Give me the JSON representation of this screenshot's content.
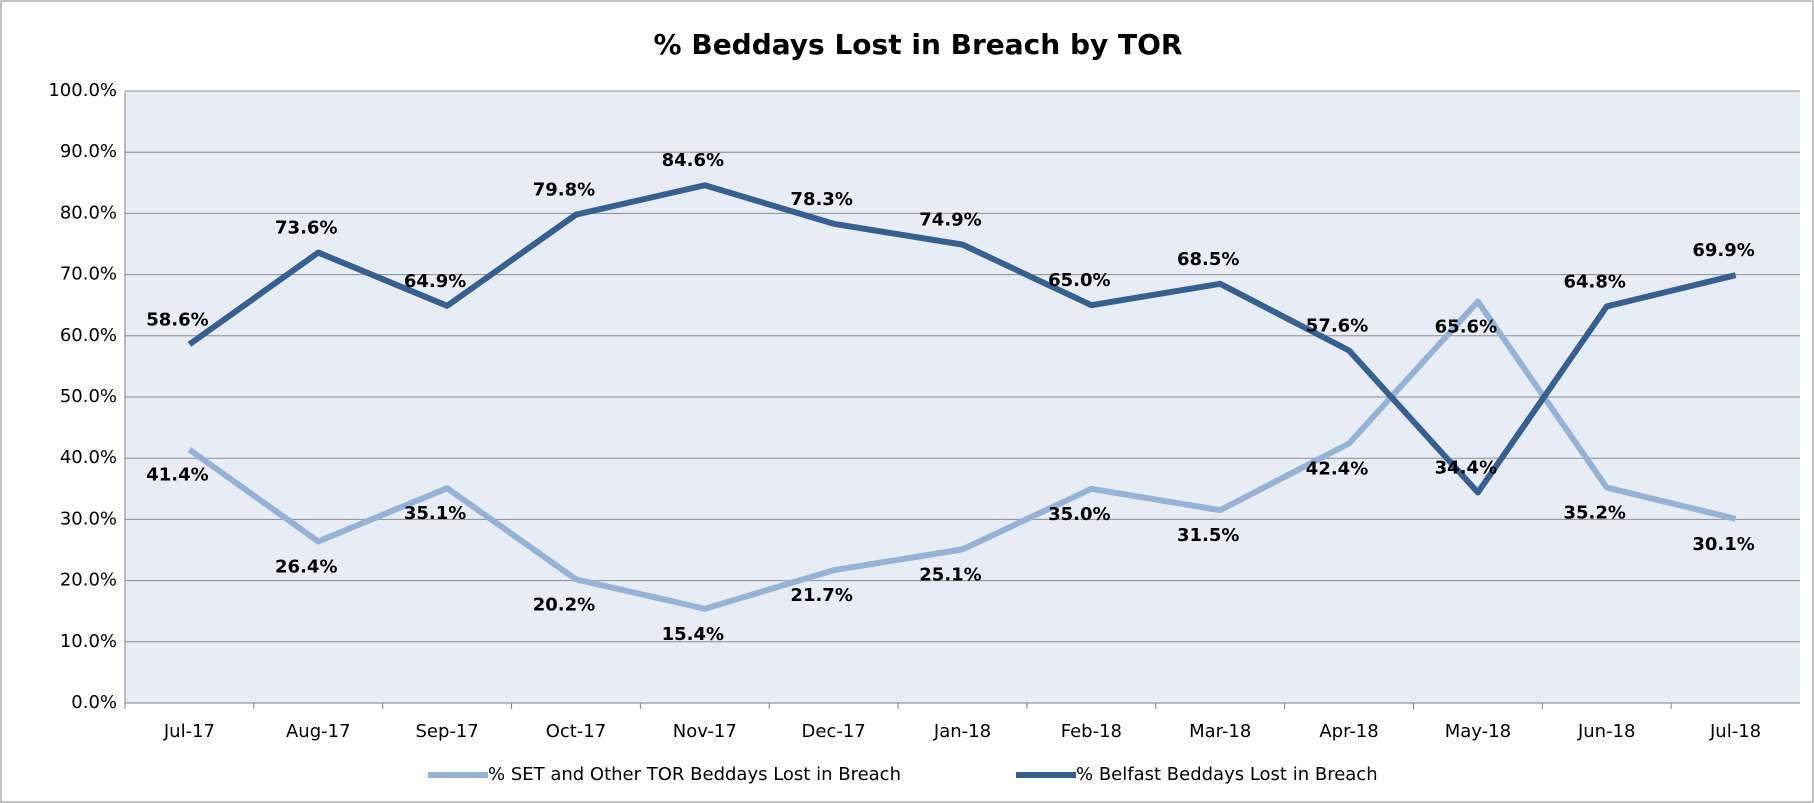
{
  "chart_data": {
    "type": "line",
    "title": "% Beddays Lost in Breach by TOR",
    "categories": [
      "Jul-17",
      "Aug-17",
      "Sep-17",
      "Oct-17",
      "Nov-17",
      "Dec-17",
      "Jan-18",
      "Feb-18",
      "Mar-18",
      "Apr-18",
      "May-18",
      "Jun-18",
      "Jul-18"
    ],
    "series": [
      {
        "name": "% SET and Other TOR Beddays Lost in Breach",
        "color": "#95b3d7",
        "values": [
          41.4,
          26.4,
          35.1,
          20.2,
          15.4,
          21.7,
          25.1,
          35.0,
          31.5,
          42.4,
          65.6,
          35.2,
          30.1
        ],
        "value_labels": [
          "41.4%",
          "26.4%",
          "35.1%",
          "20.2%",
          "15.4%",
          "21.7%",
          "25.1%",
          "35.0%",
          "31.5%",
          "42.4%",
          "65.6%",
          "35.2%",
          "30.1%"
        ]
      },
      {
        "name": "% Belfast Beddays Lost in Breach",
        "color": "#376092",
        "values": [
          58.6,
          73.6,
          64.9,
          79.8,
          84.6,
          78.3,
          74.9,
          65.0,
          68.5,
          57.6,
          34.4,
          64.8,
          69.9
        ],
        "value_labels": [
          "58.6%",
          "73.6%",
          "64.9%",
          "79.8%",
          "84.6%",
          "78.3%",
          "74.9%",
          "65.0%",
          "68.5%",
          "57.6%",
          "34.4%",
          "64.8%",
          "69.9%"
        ]
      }
    ],
    "ylim": [
      0,
      100
    ],
    "yticks": [
      {
        "value": 0,
        "label": "0.0%"
      },
      {
        "value": 10,
        "label": "10.0%"
      },
      {
        "value": 20,
        "label": "20.0%"
      },
      {
        "value": 30,
        "label": "30.0%"
      },
      {
        "value": 40,
        "label": "40.0%"
      },
      {
        "value": 50,
        "label": "50.0%"
      },
      {
        "value": 60,
        "label": "60.0%"
      },
      {
        "value": 70,
        "label": "70.0%"
      },
      {
        "value": 80,
        "label": "80.0%"
      },
      {
        "value": 90,
        "label": "90.0%"
      },
      {
        "value": 100,
        "label": "100.0%"
      }
    ],
    "grid": true,
    "legend": "bottom"
  }
}
